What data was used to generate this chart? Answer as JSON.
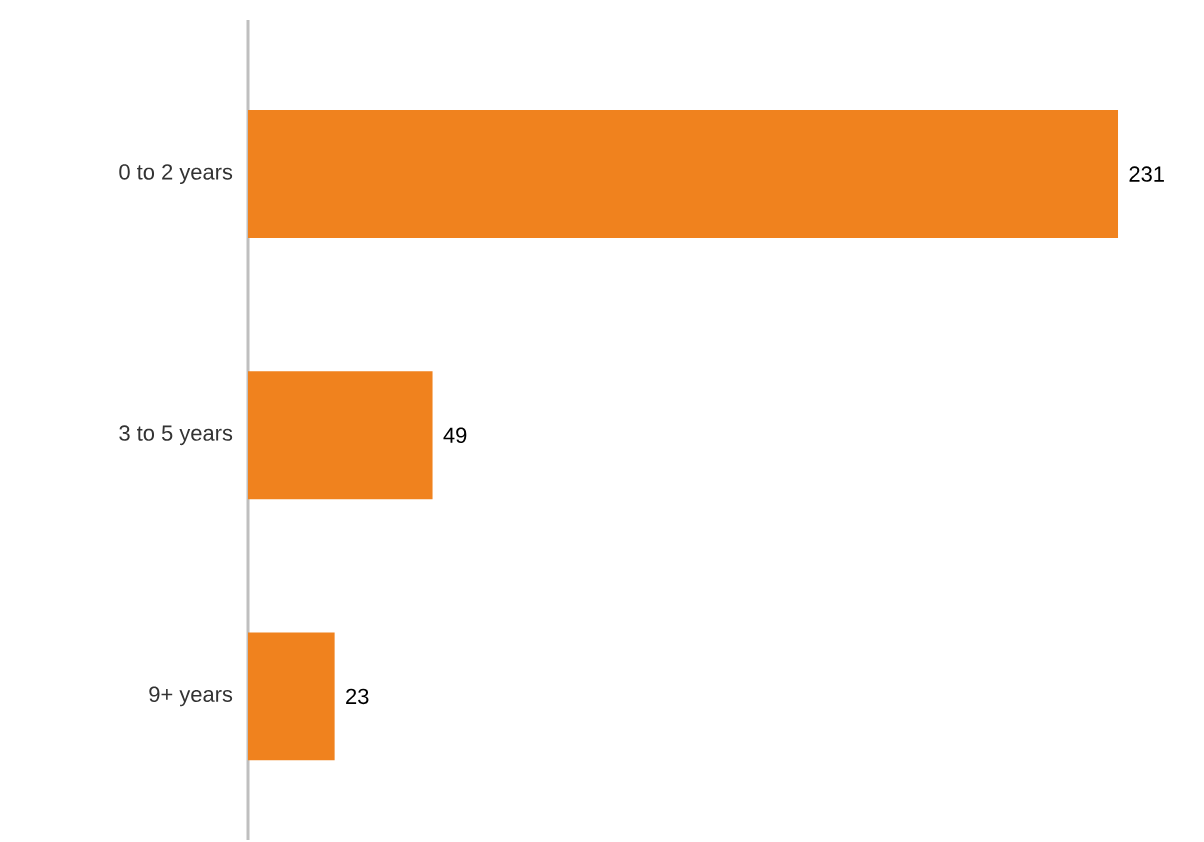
{
  "chart_data": {
    "type": "bar",
    "orientation": "horizontal",
    "categories": [
      "0 to 2 years",
      "3 to 5 years",
      "9+ years"
    ],
    "values": [
      231,
      49,
      23
    ],
    "color": "#f0821e",
    "data_labels": true
  }
}
